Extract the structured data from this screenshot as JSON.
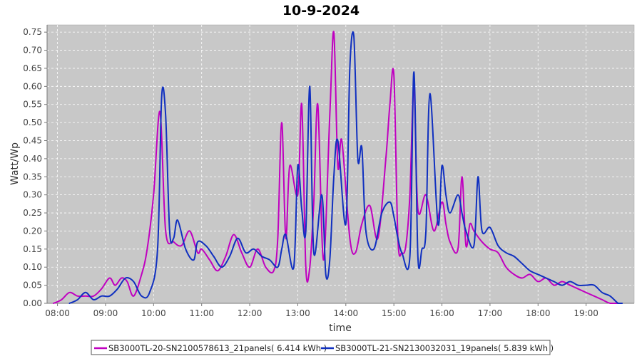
{
  "chart_data": {
    "type": "line",
    "title": "10-9-2024",
    "xlabel": "time",
    "ylabel": "Watt/Wp",
    "xticks": [
      "08:00",
      "09:00",
      "10:00",
      "11:00",
      "12:00",
      "13:00",
      "14:00",
      "15:00",
      "16:00",
      "17:00",
      "18:00",
      "19:00"
    ],
    "xlim": [
      "07:47",
      "20:00"
    ],
    "ylim": [
      0,
      0.77
    ],
    "yticks": [
      0.0,
      0.05,
      0.1,
      0.15,
      0.2,
      0.25,
      0.3,
      0.35,
      0.4,
      0.45,
      0.5,
      0.55,
      0.6,
      0.65,
      0.7,
      0.75
    ],
    "grid": true,
    "legend_position": "bottom",
    "series": [
      {
        "name": "SB3000TL-20-SN2100578613_21panels( 6.414 kWh )",
        "color": "#c000c0",
        "x": [
          "07:55",
          "08:05",
          "08:15",
          "08:25",
          "08:35",
          "08:45",
          "08:55",
          "09:05",
          "09:12",
          "09:20",
          "09:27",
          "09:35",
          "09:45",
          "09:52",
          "10:00",
          "10:08",
          "10:15",
          "10:25",
          "10:35",
          "10:45",
          "10:55",
          "11:00",
          "11:10",
          "11:20",
          "11:30",
          "11:40",
          "11:50",
          "12:00",
          "12:10",
          "12:20",
          "12:30",
          "12:35",
          "12:40",
          "12:45",
          "12:50",
          "13:00",
          "13:05",
          "13:10",
          "13:15",
          "13:20",
          "13:25",
          "13:32",
          "13:40",
          "13:45",
          "13:50",
          "13:55",
          "14:05",
          "14:12",
          "14:20",
          "14:30",
          "14:40",
          "14:50",
          "14:55",
          "15:00",
          "15:05",
          "15:10",
          "15:15",
          "15:20",
          "15:25",
          "15:30",
          "15:40",
          "15:50",
          "16:00",
          "16:05",
          "16:10",
          "16:20",
          "16:25",
          "16:30",
          "16:35",
          "16:40",
          "16:50",
          "17:00",
          "17:10",
          "17:20",
          "17:30",
          "17:40",
          "17:50",
          "18:00",
          "18:10",
          "18:20",
          "18:30",
          "18:40",
          "18:50",
          "19:00",
          "19:10",
          "19:20",
          "19:30",
          "19:40"
        ],
        "y": [
          0.0,
          0.01,
          0.03,
          0.02,
          0.02,
          0.02,
          0.04,
          0.07,
          0.05,
          0.07,
          0.06,
          0.02,
          0.08,
          0.15,
          0.3,
          0.53,
          0.2,
          0.17,
          0.16,
          0.2,
          0.14,
          0.15,
          0.12,
          0.09,
          0.13,
          0.19,
          0.14,
          0.1,
          0.15,
          0.1,
          0.09,
          0.18,
          0.5,
          0.18,
          0.38,
          0.3,
          0.55,
          0.1,
          0.1,
          0.28,
          0.55,
          0.12,
          0.52,
          0.75,
          0.38,
          0.45,
          0.18,
          0.14,
          0.22,
          0.27,
          0.18,
          0.4,
          0.55,
          0.63,
          0.18,
          0.14,
          0.16,
          0.3,
          0.6,
          0.26,
          0.3,
          0.2,
          0.28,
          0.22,
          0.17,
          0.15,
          0.35,
          0.16,
          0.22,
          0.2,
          0.17,
          0.15,
          0.14,
          0.1,
          0.08,
          0.07,
          0.08,
          0.06,
          0.07,
          0.05,
          0.06,
          0.05,
          0.04,
          0.03,
          0.02,
          0.01,
          0.0,
          0.0
        ]
      },
      {
        "name": "SB3000TL-21-SN2130032031_19panels( 5.839 kWh )",
        "color": "#1030c0",
        "x": [
          "08:15",
          "08:25",
          "08:35",
          "08:45",
          "08:55",
          "09:05",
          "09:15",
          "09:25",
          "09:35",
          "09:45",
          "09:55",
          "10:05",
          "10:10",
          "10:15",
          "10:20",
          "10:25",
          "10:30",
          "10:40",
          "10:50",
          "10:55",
          "11:05",
          "11:15",
          "11:25",
          "11:35",
          "11:45",
          "11:55",
          "12:05",
          "12:15",
          "12:25",
          "12:35",
          "12:40",
          "12:45",
          "12:55",
          "13:00",
          "13:05",
          "13:10",
          "13:15",
          "13:20",
          "13:30",
          "13:35",
          "13:40",
          "13:45",
          "13:50",
          "14:00",
          "14:05",
          "14:10",
          "14:15",
          "14:20",
          "14:25",
          "14:35",
          "14:45",
          "14:55",
          "15:00",
          "15:05",
          "15:10",
          "15:20",
          "15:25",
          "15:30",
          "15:35",
          "15:40",
          "15:45",
          "15:55",
          "16:00",
          "16:05",
          "16:10",
          "16:20",
          "16:25",
          "16:30",
          "16:40",
          "16:45",
          "16:50",
          "17:00",
          "17:10",
          "17:20",
          "17:30",
          "17:40",
          "17:50",
          "18:00",
          "18:10",
          "18:20",
          "18:30",
          "18:40",
          "18:50",
          "19:00",
          "19:10",
          "19:20",
          "19:30",
          "19:40",
          "19:45"
        ],
        "y": [
          0.0,
          0.01,
          0.03,
          0.01,
          0.02,
          0.02,
          0.04,
          0.07,
          0.06,
          0.02,
          0.03,
          0.15,
          0.57,
          0.52,
          0.2,
          0.18,
          0.23,
          0.15,
          0.12,
          0.17,
          0.16,
          0.13,
          0.1,
          0.13,
          0.18,
          0.14,
          0.15,
          0.13,
          0.12,
          0.1,
          0.15,
          0.19,
          0.1,
          0.38,
          0.26,
          0.2,
          0.6,
          0.14,
          0.3,
          0.08,
          0.12,
          0.35,
          0.45,
          0.22,
          0.65,
          0.74,
          0.4,
          0.43,
          0.2,
          0.15,
          0.25,
          0.28,
          0.24,
          0.18,
          0.14,
          0.13,
          0.64,
          0.13,
          0.15,
          0.2,
          0.58,
          0.22,
          0.38,
          0.3,
          0.25,
          0.3,
          0.25,
          0.2,
          0.16,
          0.35,
          0.2,
          0.21,
          0.16,
          0.14,
          0.13,
          0.11,
          0.09,
          0.08,
          0.07,
          0.06,
          0.05,
          0.06,
          0.05,
          0.05,
          0.05,
          0.03,
          0.02,
          0.0,
          0.0
        ]
      }
    ]
  }
}
